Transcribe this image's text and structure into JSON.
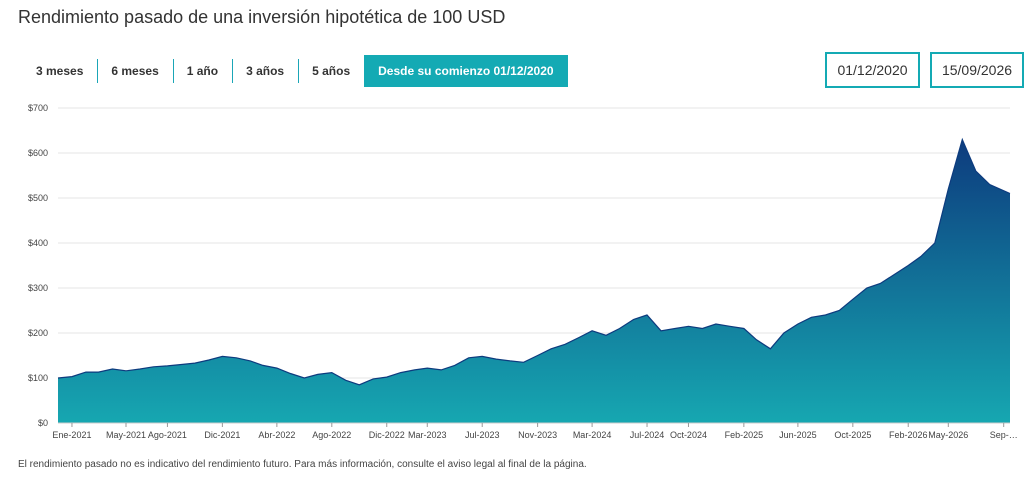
{
  "title": "Rendimiento pasado de una inversión hipotética de 100 USD",
  "periods": [
    {
      "label": "3 meses",
      "active": false
    },
    {
      "label": "6 meses",
      "active": false
    },
    {
      "label": "1 año",
      "active": false
    },
    {
      "label": "3 años",
      "active": false
    },
    {
      "label": "5 años",
      "active": false
    },
    {
      "label": "Desde su comienzo 01/12/2020",
      "active": true
    }
  ],
  "date_range": {
    "start": "01/12/2020",
    "end": "15/09/2026"
  },
  "disclaimer": "El rendimiento pasado no es indicativo del rendimiento futuro. Para más información, consulte el aviso legal al final de la página.",
  "colors": {
    "accent": "#14aab4",
    "area_top": "#0d3b7e",
    "area_bottom": "#16a7b1",
    "grid": "#e6e6e6"
  },
  "chart_data": {
    "type": "area",
    "title": "",
    "xlabel": "",
    "ylabel": "",
    "grid": true,
    "ylim": [
      0,
      700
    ],
    "y_ticks": [
      0,
      100,
      200,
      300,
      400,
      500,
      600,
      700
    ],
    "y_tick_labels": [
      "$0",
      "$100",
      "$200",
      "$300",
      "$400",
      "$500",
      "$600",
      "$700"
    ],
    "x_range": [
      "2020-12",
      "2026-09-15"
    ],
    "x_ticks": [
      {
        "date": "2021-01",
        "label": "Ene-2021"
      },
      {
        "date": "2021-05",
        "label": "May-2021"
      },
      {
        "date": "2021-08",
        "label": "Ago-2021"
      },
      {
        "date": "2021-12",
        "label": "Dic-2021"
      },
      {
        "date": "2022-04",
        "label": "Abr-2022"
      },
      {
        "date": "2022-08",
        "label": "Ago-2022"
      },
      {
        "date": "2022-12",
        "label": "Dic-2022"
      },
      {
        "date": "2023-03",
        "label": "Mar-2023"
      },
      {
        "date": "2023-07",
        "label": "Jul-2023"
      },
      {
        "date": "2023-11",
        "label": "Nov-2023"
      },
      {
        "date": "2024-03",
        "label": "Mar-2024"
      },
      {
        "date": "2024-07",
        "label": "Jul-2024"
      },
      {
        "date": "2024-10",
        "label": "Oct-2024"
      },
      {
        "date": "2025-02",
        "label": "Feb-2025"
      },
      {
        "date": "2025-06",
        "label": "Jun-2025"
      },
      {
        "date": "2025-10",
        "label": "Oct-2025"
      },
      {
        "date": "2026-02",
        "label": "Feb-2026"
      },
      {
        "date": "2026-05",
        "label": "May-2026"
      },
      {
        "date": "2026-09",
        "label": "Sep-…"
      }
    ],
    "series": [
      {
        "points": [
          [
            "2020-12",
            100
          ],
          [
            "2021-01",
            103
          ],
          [
            "2021-02",
            113
          ],
          [
            "2021-03",
            113
          ],
          [
            "2021-04",
            120
          ],
          [
            "2021-05",
            116
          ],
          [
            "2021-06",
            120
          ],
          [
            "2021-07",
            125
          ],
          [
            "2021-08",
            127
          ],
          [
            "2021-09",
            130
          ],
          [
            "2021-10",
            133
          ],
          [
            "2021-11",
            140
          ],
          [
            "2021-12",
            148
          ],
          [
            "2022-01",
            145
          ],
          [
            "2022-02",
            138
          ],
          [
            "2022-03",
            128
          ],
          [
            "2022-04",
            122
          ],
          [
            "2022-05",
            110
          ],
          [
            "2022-06",
            100
          ],
          [
            "2022-07",
            108
          ],
          [
            "2022-08",
            112
          ],
          [
            "2022-09",
            95
          ],
          [
            "2022-10",
            85
          ],
          [
            "2022-11",
            98
          ],
          [
            "2022-12",
            102
          ],
          [
            "2023-01",
            112
          ],
          [
            "2023-02",
            118
          ],
          [
            "2023-03",
            122
          ],
          [
            "2023-04",
            118
          ],
          [
            "2023-05",
            128
          ],
          [
            "2023-06",
            145
          ],
          [
            "2023-07",
            148
          ],
          [
            "2023-08",
            142
          ],
          [
            "2023-09",
            138
          ],
          [
            "2023-10",
            135
          ],
          [
            "2023-11",
            150
          ],
          [
            "2023-12",
            165
          ],
          [
            "2024-01",
            175
          ],
          [
            "2024-02",
            190
          ],
          [
            "2024-03",
            205
          ],
          [
            "2024-04",
            195
          ],
          [
            "2024-05",
            210
          ],
          [
            "2024-06",
            230
          ],
          [
            "2024-07",
            240
          ],
          [
            "2024-08",
            205
          ],
          [
            "2024-09",
            210
          ],
          [
            "2024-10",
            215
          ],
          [
            "2024-11",
            210
          ],
          [
            "2024-12",
            220
          ],
          [
            "2025-01",
            215
          ],
          [
            "2025-02",
            210
          ],
          [
            "2025-03",
            185
          ],
          [
            "2025-04",
            165
          ],
          [
            "2025-05",
            200
          ],
          [
            "2025-06",
            220
          ],
          [
            "2025-07",
            235
          ],
          [
            "2025-08",
            240
          ],
          [
            "2025-09",
            250
          ],
          [
            "2025-10",
            275
          ],
          [
            "2025-11",
            300
          ],
          [
            "2025-12",
            310
          ],
          [
            "2026-01",
            330
          ],
          [
            "2026-02",
            350
          ],
          [
            "2026-03",
            370
          ],
          [
            "2026-04",
            400
          ],
          [
            "2026-05",
            520
          ],
          [
            "2026-06",
            630
          ],
          [
            "2026-07",
            560
          ],
          [
            "2026-08",
            530
          ],
          [
            "2026-09-15",
            510
          ]
        ]
      }
    ]
  }
}
